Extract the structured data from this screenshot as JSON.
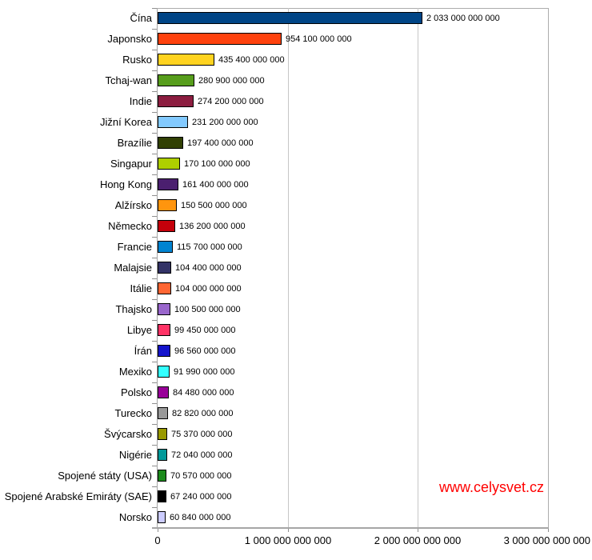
{
  "chart_data": {
    "type": "bar",
    "orientation": "horizontal",
    "title": "",
    "xlabel": "",
    "ylabel": "",
    "xlim": [
      0,
      3000000000000
    ],
    "grid": "vertical-gridlines",
    "legend": "none",
    "background": "#FFFFFF",
    "categories": [
      "Čína",
      "Japonsko",
      "Rusko",
      "Tchaj-wan",
      "Indie",
      "Jižní Korea",
      "Brazílie",
      "Singapur",
      "Hong Kong",
      "Alžírsko",
      "Německo",
      "Francie",
      "Malajsie",
      "Itálie",
      "Thajsko",
      "Libye",
      "Írán",
      "Mexiko",
      "Polsko",
      "Turecko",
      "Švýcarsko",
      "Nigérie",
      "Spojené státy (USA)",
      "Spojené Arabské Emiráty (SAE)",
      "Norsko"
    ],
    "values": [
      2033000000000,
      954100000000,
      435400000000,
      280900000000,
      274200000000,
      231200000000,
      197400000000,
      170100000000,
      161400000000,
      150500000000,
      136200000000,
      115700000000,
      104400000000,
      104000000000,
      100500000000,
      99450000000,
      96560000000,
      91990000000,
      84480000000,
      82820000000,
      75370000000,
      72040000000,
      70570000000,
      67240000000,
      60840000000
    ],
    "value_labels": [
      "2 033 000 000 000",
      "954 100 000 000",
      "435 400 000 000",
      "280 900 000 000",
      "274 200 000 000",
      "231 200 000 000",
      "197 400 000 000",
      "170 100 000 000",
      "161 400 000 000",
      "150 500 000 000",
      "136 200 000 000",
      "115 700 000 000",
      "104 400 000 000",
      "104 000 000 000",
      "100 500 000 000",
      "99 450 000 000",
      "96 560 000 000",
      "91 990 000 000",
      "84 480 000 000",
      "82 820 000 000",
      "75 370 000 000",
      "72 040 000 000",
      "70 570 000 000",
      "67 240 000 000",
      "60 840 000 000"
    ],
    "bar_colors": [
      "#004586",
      "#FF420E",
      "#FFD320",
      "#579D1C",
      "#8C1D40",
      "#83CAFF",
      "#314004",
      "#AECF00",
      "#4B1F6F",
      "#FF950E",
      "#C5000B",
      "#0084D1",
      "#333366",
      "#FF6633",
      "#9966CC",
      "#FF3366",
      "#1414CC",
      "#33FFFF",
      "#990099",
      "#999999",
      "#999900",
      "#009999",
      "#1C8A1C",
      "#000000",
      "#CCCCFF"
    ],
    "x_ticks": [
      {
        "value": 0,
        "label": "0"
      },
      {
        "value": 1000000000000,
        "label": "1 000 000 000 000"
      },
      {
        "value": 2000000000000,
        "label": "2 000 000 000 000"
      },
      {
        "value": 3000000000000,
        "label": "3 000 000 000 000"
      }
    ]
  },
  "watermark": {
    "text": "www.celysvet.cz",
    "color": "#FF0000"
  }
}
